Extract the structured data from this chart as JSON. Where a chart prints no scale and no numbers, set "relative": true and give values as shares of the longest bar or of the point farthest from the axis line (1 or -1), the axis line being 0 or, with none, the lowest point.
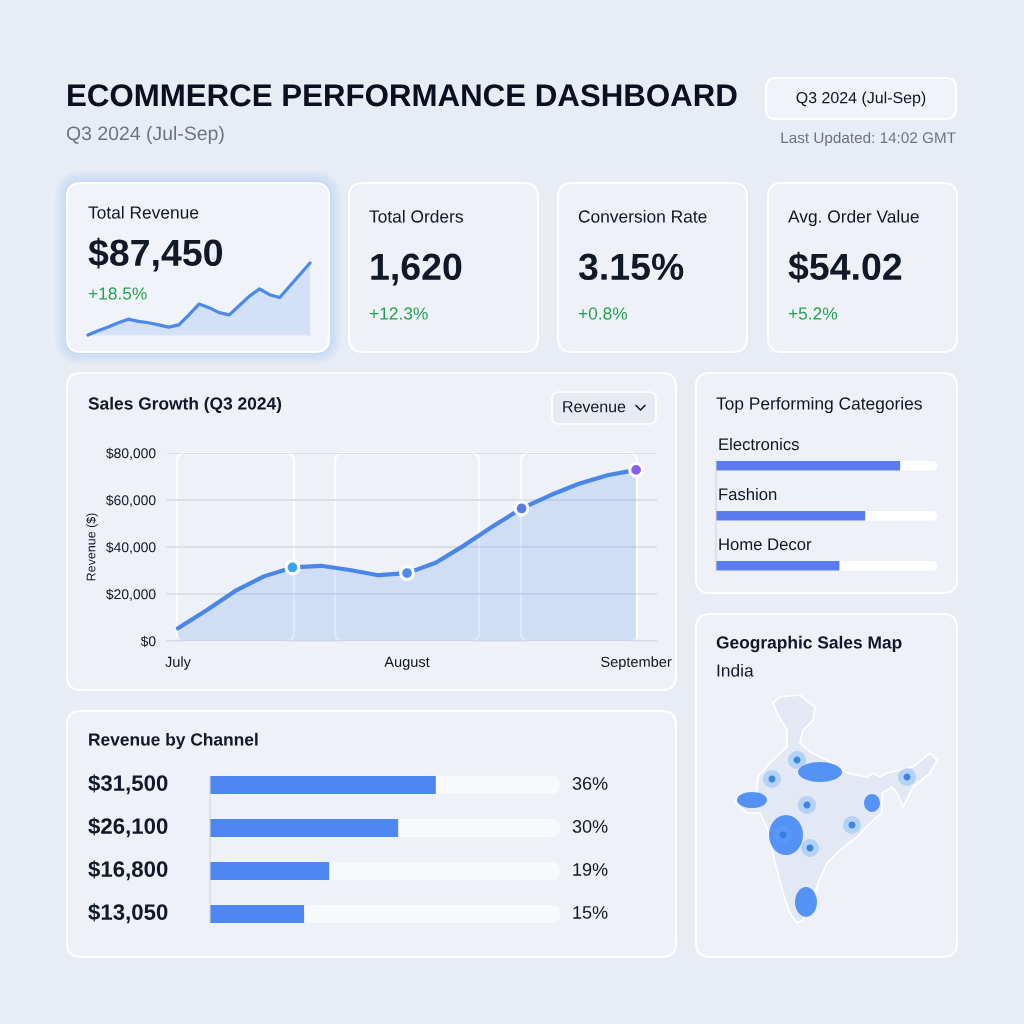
{
  "chart_data": [
    {
      "type": "other",
      "title": "ECOMMERCE PERFORMANCE DASHBOARD",
      "subtitle": "Q3 2024 (Jul-Sep)",
      "annotations": [
        "Q3 2024 (Jul-Sep)",
        "Last Updated: 14:02 GMT"
      ]
    },
    {
      "type": "area",
      "title": "Total Revenue",
      "annotations": [
        "$87,450",
        "+18.5%"
      ],
      "relative": true,
      "categories": [
        null,
        null,
        null,
        null,
        null,
        null,
        null,
        null,
        null,
        null,
        null,
        null,
        null,
        null,
        null,
        null,
        null,
        null,
        null,
        null,
        null,
        null,
        null
      ],
      "values": [
        0,
        0.06,
        0.11,
        0.17,
        0.22,
        0.19,
        0.17,
        0.14,
        0.11,
        0.14,
        0.28,
        0.43,
        0.38,
        0.31,
        0.28,
        0.41,
        0.54,
        0.64,
        0.56,
        0.52,
        0.68,
        0.84,
        1
      ],
      "color": "#4b8ae8"
    },
    {
      "type": "other",
      "title": "Total Orders",
      "annotations": [
        "1,620",
        "+12.3%"
      ]
    },
    {
      "type": "other",
      "title": "Conversion Rate",
      "annotations": [
        "3.15%",
        "+0.8%"
      ]
    },
    {
      "type": "other",
      "title": "Avg. Order Value",
      "annotations": [
        "$54.02",
        "+5.2%"
      ]
    },
    {
      "type": "area",
      "title": "Sales Growth (Q3 2024)",
      "ylabel": "Revenue ($)",
      "annotations": [
        "Revenue"
      ],
      "categories": [
        "July",
        null,
        null,
        null,
        null,
        null,
        null,
        null,
        "August",
        null,
        null,
        null,
        null,
        null,
        null,
        null,
        "September"
      ],
      "ylim": [
        0,
        80000
      ],
      "yticks": [
        {
          "value": 0,
          "label": "$0"
        },
        {
          "value": 20000,
          "label": "$20,000"
        },
        {
          "value": 40000,
          "label": "$40,000"
        },
        {
          "value": 60000,
          "label": "$60,000"
        },
        {
          "value": 80000,
          "label": "$80,000"
        }
      ],
      "grid": "y",
      "series": [
        {
          "type": "area",
          "color": "#4a86e8",
          "values": [
            5400,
            13100,
            21300,
            27500,
            31300,
            32000,
            30200,
            28000,
            28900,
            33300,
            40700,
            48800,
            56400,
            62000,
            66900,
            70500,
            72800
          ]
        },
        {
          "type": "scatter",
          "marker": "circle",
          "colors": [
            null,
            null,
            null,
            null,
            "#3aa4ec",
            null,
            null,
            null,
            "#4a8ce8",
            null,
            null,
            null,
            "#5b7ae9",
            null,
            null,
            null,
            "#8a5cf0"
          ],
          "values": [
            null,
            null,
            null,
            null,
            31300,
            null,
            null,
            null,
            28900,
            null,
            null,
            null,
            56400,
            null,
            null,
            null,
            72800
          ]
        }
      ]
    },
    {
      "type": "bar",
      "orientation": "horizontal",
      "relative": true,
      "title": "Top Performing Categories",
      "categories": [
        "Electronics",
        "Fashion",
        "Home Decor"
      ],
      "values": [
        1,
        0.81,
        0.67
      ],
      "color": "#5b7cf0"
    },
    {
      "type": "other",
      "title": "Geographic Sales Map",
      "subtitle": "India"
    },
    {
      "type": "bar",
      "orientation": "horizontal",
      "title": "Revenue by Channel",
      "categories": [
        null,
        null,
        null,
        null
      ],
      "values": [
        36,
        30,
        19,
        15
      ],
      "value_labels": [
        "36%",
        "30%",
        "19%",
        "15%"
      ],
      "annotations": [
        "$31,500",
        "$26,100",
        "$16,800",
        "$13,050"
      ],
      "color": "#4e86f2",
      "tick_labels": false
    }
  ]
}
